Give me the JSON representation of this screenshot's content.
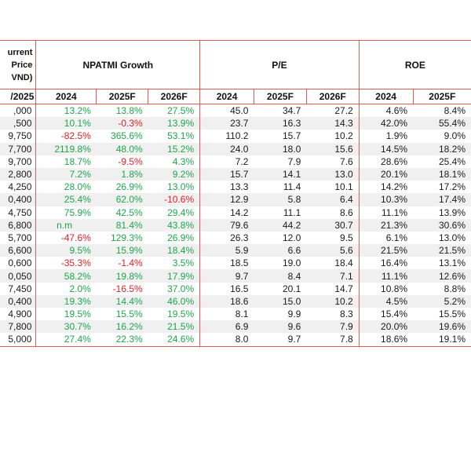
{
  "header": {
    "price_label": [
      "urrent",
      "Price",
      "VND)"
    ],
    "price_sub": "/2025",
    "groups": [
      "NPATMI Growth",
      "P/E",
      "ROE"
    ],
    "years": [
      "2024",
      "2025F",
      "2026F",
      "2024",
      "2025F",
      "2026F",
      "2024",
      "2025F"
    ]
  },
  "rows": [
    {
      "price": ",000",
      "g": [
        "13.2%",
        "13.8%",
        "27.5%"
      ],
      "pe": [
        "45.0",
        "34.7",
        "27.2"
      ],
      "roe": [
        "4.6%",
        "8.4%"
      ]
    },
    {
      "price": ",500",
      "g": [
        "10.1%",
        "-0.3%",
        "13.9%"
      ],
      "pe": [
        "23.7",
        "16.3",
        "14.3"
      ],
      "roe": [
        "42.0%",
        "55.4%"
      ]
    },
    {
      "price": "9,750",
      "g": [
        "-82.5%",
        "365.6%",
        "53.1%"
      ],
      "pe": [
        "110.2",
        "15.7",
        "10.2"
      ],
      "roe": [
        "1.9%",
        "9.0%"
      ]
    },
    {
      "price": "7,700",
      "g": [
        "2119.8%",
        "48.0%",
        "15.2%"
      ],
      "pe": [
        "24.0",
        "18.0",
        "15.6"
      ],
      "roe": [
        "14.5%",
        "18.2%"
      ]
    },
    {
      "price": "9,700",
      "g": [
        "18.7%",
        "-9.5%",
        "4.3%"
      ],
      "pe": [
        "7.2",
        "7.9",
        "7.6"
      ],
      "roe": [
        "28.6%",
        "25.4%"
      ]
    },
    {
      "price": "2,800",
      "g": [
        "7.2%",
        "1.8%",
        "9.2%"
      ],
      "pe": [
        "15.7",
        "14.1",
        "13.0"
      ],
      "roe": [
        "20.1%",
        "18.1%"
      ]
    },
    {
      "price": "4,250",
      "g": [
        "28.0%",
        "26.9%",
        "13.0%"
      ],
      "pe": [
        "13.3",
        "11.4",
        "10.1"
      ],
      "roe": [
        "14.2%",
        "17.2%"
      ]
    },
    {
      "price": "0,400",
      "g": [
        "25.4%",
        "62.0%",
        "-10.6%"
      ],
      "pe": [
        "12.9",
        "5.8",
        "6.4"
      ],
      "roe": [
        "10.3%",
        "17.4%"
      ]
    },
    {
      "price": "4,750",
      "g": [
        "75.9%",
        "42.5%",
        "29.4%"
      ],
      "pe": [
        "14.2",
        "11.1",
        "8.6"
      ],
      "roe": [
        "11.1%",
        "13.9%"
      ]
    },
    {
      "price": "6,800",
      "g": [
        "n.m",
        "81.4%",
        "43.8%"
      ],
      "pe": [
        "79.6",
        "44.2",
        "30.7"
      ],
      "roe": [
        "21.3%",
        "30.6%"
      ]
    },
    {
      "price": "5,700",
      "g": [
        "-47.6%",
        "129.3%",
        "26.9%"
      ],
      "pe": [
        "26.3",
        "12.0",
        "9.5"
      ],
      "roe": [
        "6.1%",
        "13.0%"
      ]
    },
    {
      "price": "6,600",
      "g": [
        "9.5%",
        "15.9%",
        "18.4%"
      ],
      "pe": [
        "5.9",
        "6.6",
        "5.6"
      ],
      "roe": [
        "21.5%",
        "21.5%"
      ]
    },
    {
      "price": "0,600",
      "g": [
        "-35.3%",
        "-1.4%",
        "3.5%"
      ],
      "pe": [
        "18.5",
        "19.0",
        "18.4"
      ],
      "roe": [
        "16.4%",
        "13.1%"
      ]
    },
    {
      "price": "0,050",
      "g": [
        "58.2%",
        "19.8%",
        "17.9%"
      ],
      "pe": [
        "9.7",
        "8.4",
        "7.1"
      ],
      "roe": [
        "11.1%",
        "12.6%"
      ]
    },
    {
      "price": "7,450",
      "g": [
        "2.0%",
        "-16.5%",
        "37.0%"
      ],
      "pe": [
        "16.5",
        "20.1",
        "14.7"
      ],
      "roe": [
        "10.8%",
        "8.8%"
      ]
    },
    {
      "price": "0,400",
      "g": [
        "19.3%",
        "14.4%",
        "46.0%"
      ],
      "pe": [
        "18.6",
        "15.0",
        "10.2"
      ],
      "roe": [
        "4.5%",
        "5.2%"
      ]
    },
    {
      "price": "4,900",
      "g": [
        "19.5%",
        "15.5%",
        "19.5%"
      ],
      "pe": [
        "8.1",
        "9.9",
        "8.3"
      ],
      "roe": [
        "15.4%",
        "15.5%"
      ]
    },
    {
      "price": "7,800",
      "g": [
        "30.7%",
        "16.2%",
        "21.5%"
      ],
      "pe": [
        "6.9",
        "9.6",
        "7.9"
      ],
      "roe": [
        "20.0%",
        "19.6%"
      ]
    },
    {
      "price": "5,000",
      "g": [
        "27.4%",
        "22.3%",
        "24.6%"
      ],
      "pe": [
        "8.0",
        "9.7",
        "7.8"
      ],
      "roe": [
        "18.6%",
        "19.1%"
      ]
    }
  ],
  "colors": {
    "positive": "#1ea64b",
    "negative": "#e31e24",
    "rule": "#e45a5a",
    "stripe": "#f0f0f0"
  }
}
